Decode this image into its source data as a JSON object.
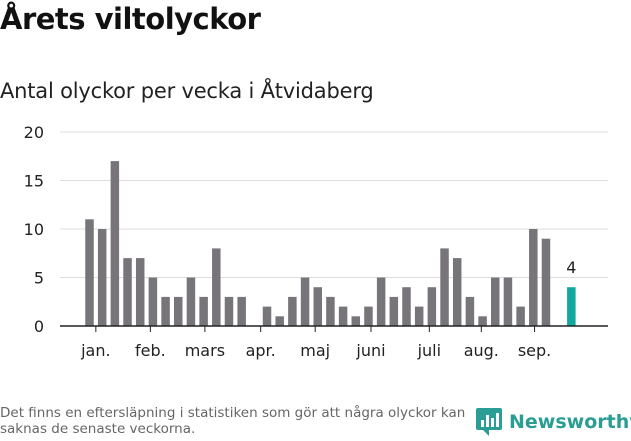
{
  "header": {
    "title": "Årets viltolyckor",
    "subtitle": "Antal olyckor per vecka i Åtvidaberg"
  },
  "footer": {
    "note": "Det finns en eftersläpning i statistiken som gör att några olyckor kan saknas de senaste veckorna.",
    "brand": "Newsworthy"
  },
  "colors": {
    "bar": "#77757a",
    "highlight": "#13a89e",
    "grid": "#dddddd",
    "axis": "#222222",
    "text": "#222222"
  },
  "icons": {
    "brand_logo": "newsworthy-logo-icon"
  },
  "chart_data": {
    "type": "bar",
    "title": "Antal olyckor per vecka i Åtvidaberg",
    "xlabel": "",
    "ylabel": "",
    "ylim": [
      0,
      20
    ],
    "yticks": [
      0,
      5,
      10,
      15,
      20
    ],
    "grid": true,
    "legend": "none",
    "values": [
      11,
      10,
      17,
      7,
      7,
      5,
      3,
      3,
      5,
      3,
      8,
      3,
      3,
      0,
      2,
      1,
      3,
      5,
      4,
      3,
      2,
      1,
      2,
      5,
      3,
      4,
      2,
      4,
      8,
      7,
      3,
      1,
      5,
      5,
      2,
      10,
      9,
      0,
      4
    ],
    "highlight_index": 38,
    "highlight_label": "4",
    "month_labels": [
      {
        "label": "jan.",
        "index": 0.5
      },
      {
        "label": "feb.",
        "index": 4.8
      },
      {
        "label": "mars",
        "index": 9.1
      },
      {
        "label": "apr.",
        "index": 13.5
      },
      {
        "label": "maj",
        "index": 17.8
      },
      {
        "label": "juni",
        "index": 22.2
      },
      {
        "label": "juli",
        "index": 26.8
      },
      {
        "label": "aug.",
        "index": 30.9
      },
      {
        "label": "sep.",
        "index": 35.1
      }
    ]
  }
}
